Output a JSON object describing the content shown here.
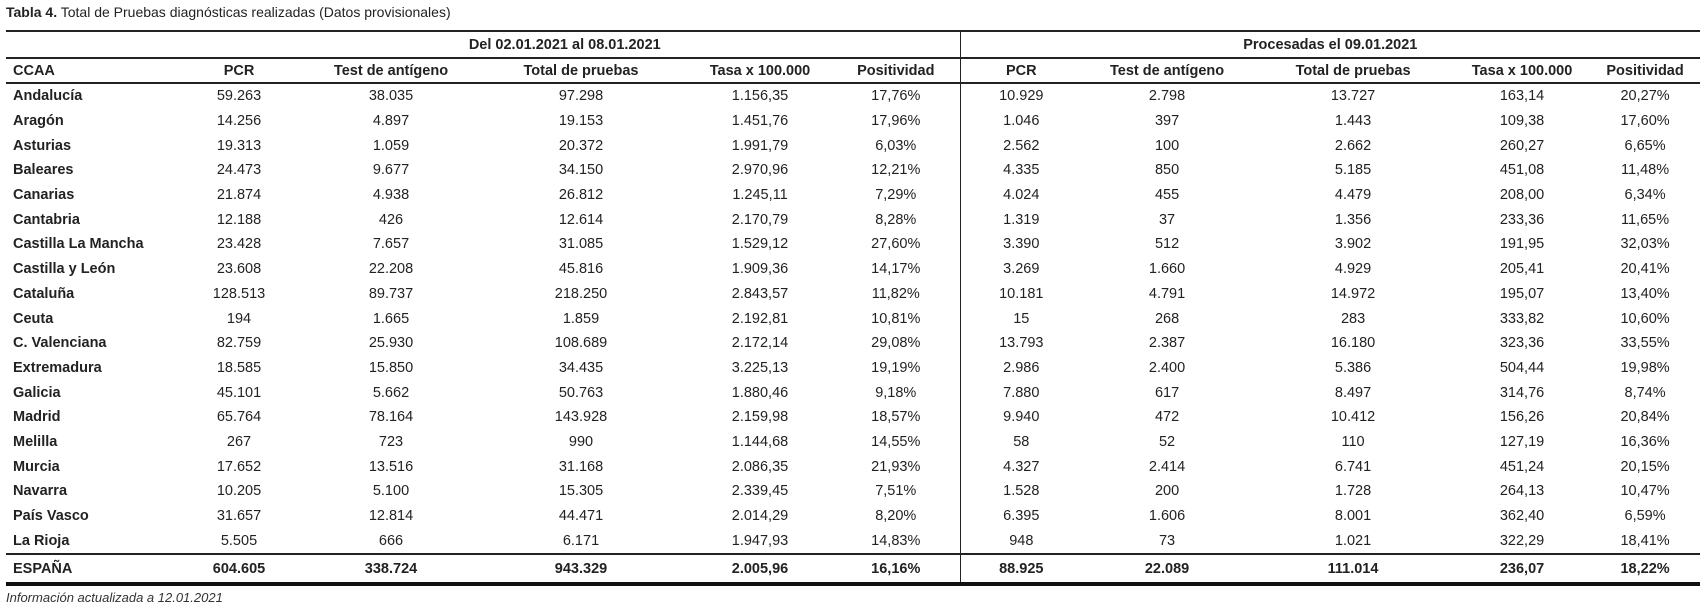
{
  "title": {
    "prefix": "Tabla 4.",
    "text": "Total de Pruebas diagnósticas realizadas (Datos provisionales)"
  },
  "groups": [
    "Del 02.01.2021 al 08.01.2021",
    "Procesadas el 09.01.2021"
  ],
  "columns": [
    "CCAA",
    "PCR",
    "Test de antígeno",
    "Total de pruebas",
    "Tasa x 100.000",
    "Positividad",
    "PCR",
    "Test de antígeno",
    "Total de pruebas",
    "Tasa x 100.000",
    "Positividad"
  ],
  "rows": [
    [
      "Andalucía",
      "59.263",
      "38.035",
      "97.298",
      "1.156,35",
      "17,76%",
      "10.929",
      "2.798",
      "13.727",
      "163,14",
      "20,27%"
    ],
    [
      "Aragón",
      "14.256",
      "4.897",
      "19.153",
      "1.451,76",
      "17,96%",
      "1.046",
      "397",
      "1.443",
      "109,38",
      "17,60%"
    ],
    [
      "Asturias",
      "19.313",
      "1.059",
      "20.372",
      "1.991,79",
      "6,03%",
      "2.562",
      "100",
      "2.662",
      "260,27",
      "6,65%"
    ],
    [
      "Baleares",
      "24.473",
      "9.677",
      "34.150",
      "2.970,96",
      "12,21%",
      "4.335",
      "850",
      "5.185",
      "451,08",
      "11,48%"
    ],
    [
      "Canarias",
      "21.874",
      "4.938",
      "26.812",
      "1.245,11",
      "7,29%",
      "4.024",
      "455",
      "4.479",
      "208,00",
      "6,34%"
    ],
    [
      "Cantabria",
      "12.188",
      "426",
      "12.614",
      "2.170,79",
      "8,28%",
      "1.319",
      "37",
      "1.356",
      "233,36",
      "11,65%"
    ],
    [
      "Castilla La Mancha",
      "23.428",
      "7.657",
      "31.085",
      "1.529,12",
      "27,60%",
      "3.390",
      "512",
      "3.902",
      "191,95",
      "32,03%"
    ],
    [
      "Castilla y León",
      "23.608",
      "22.208",
      "45.816",
      "1.909,36",
      "14,17%",
      "3.269",
      "1.660",
      "4.929",
      "205,41",
      "20,41%"
    ],
    [
      "Cataluña",
      "128.513",
      "89.737",
      "218.250",
      "2.843,57",
      "11,82%",
      "10.181",
      "4.791",
      "14.972",
      "195,07",
      "13,40%"
    ],
    [
      "Ceuta",
      "194",
      "1.665",
      "1.859",
      "2.192,81",
      "10,81%",
      "15",
      "268",
      "283",
      "333,82",
      "10,60%"
    ],
    [
      "C. Valenciana",
      "82.759",
      "25.930",
      "108.689",
      "2.172,14",
      "29,08%",
      "13.793",
      "2.387",
      "16.180",
      "323,36",
      "33,55%"
    ],
    [
      "Extremadura",
      "18.585",
      "15.850",
      "34.435",
      "3.225,13",
      "19,19%",
      "2.986",
      "2.400",
      "5.386",
      "504,44",
      "19,98%"
    ],
    [
      "Galicia",
      "45.101",
      "5.662",
      "50.763",
      "1.880,46",
      "9,18%",
      "7.880",
      "617",
      "8.497",
      "314,76",
      "8,74%"
    ],
    [
      "Madrid",
      "65.764",
      "78.164",
      "143.928",
      "2.159,98",
      "18,57%",
      "9.940",
      "472",
      "10.412",
      "156,26",
      "20,84%"
    ],
    [
      "Melilla",
      "267",
      "723",
      "990",
      "1.144,68",
      "14,55%",
      "58",
      "52",
      "110",
      "127,19",
      "16,36%"
    ],
    [
      "Murcia",
      "17.652",
      "13.516",
      "31.168",
      "2.086,35",
      "21,93%",
      "4.327",
      "2.414",
      "6.741",
      "451,24",
      "20,15%"
    ],
    [
      "Navarra",
      "10.205",
      "5.100",
      "15.305",
      "2.339,45",
      "7,51%",
      "1.528",
      "200",
      "1.728",
      "264,13",
      "10,47%"
    ],
    [
      "País Vasco",
      "31.657",
      "12.814",
      "44.471",
      "2.014,29",
      "8,20%",
      "6.395",
      "1.606",
      "8.001",
      "362,40",
      "6,59%"
    ],
    [
      "La Rioja",
      "5.505",
      "666",
      "6.171",
      "1.947,93",
      "14,83%",
      "948",
      "73",
      "1.021",
      "322,29",
      "18,41%"
    ]
  ],
  "total": [
    "ESPAÑA",
    "604.605",
    "338.724",
    "943.329",
    "2.005,96",
    "16,16%",
    "88.925",
    "22.089",
    "111.014",
    "236,07",
    "18,22%"
  ],
  "footer": "Información actualizada a 12.01.2021"
}
